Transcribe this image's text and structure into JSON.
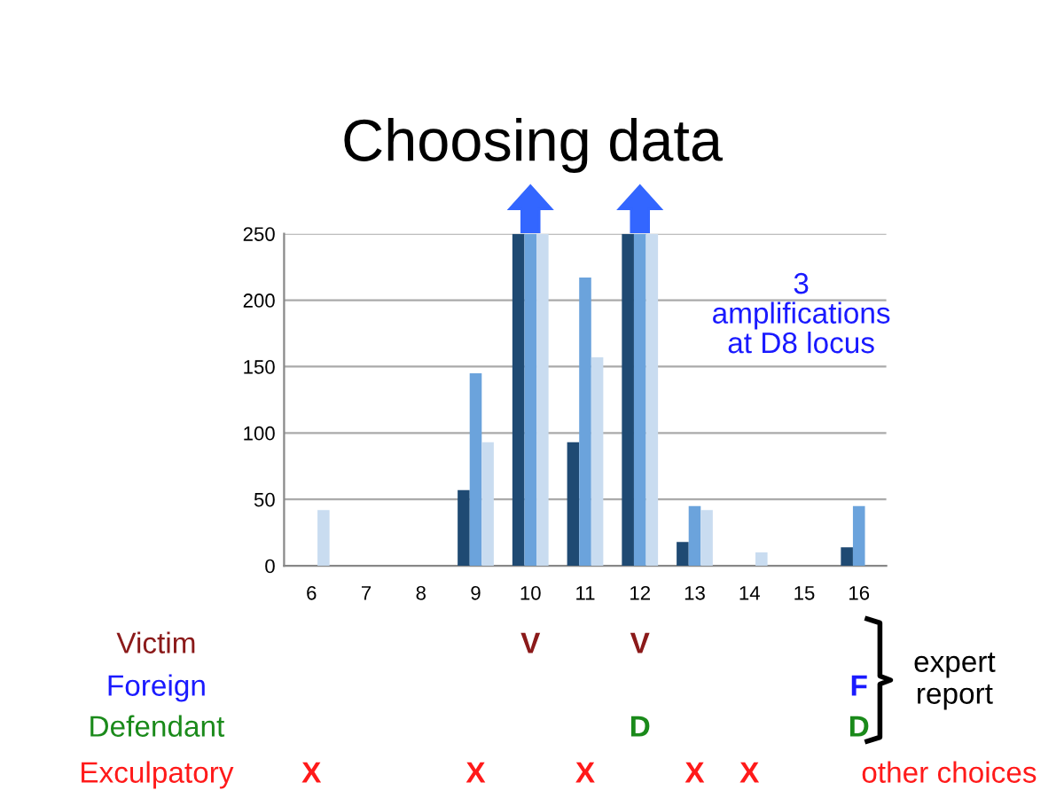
{
  "chart_data": {
    "type": "bar",
    "title": "Choosing data",
    "categories": [
      "6",
      "7",
      "8",
      "9",
      "10",
      "11",
      "12",
      "13",
      "14",
      "15",
      "16"
    ],
    "series": [
      {
        "color": "#1f4a73",
        "values": [
          null,
          null,
          null,
          57,
          250,
          93,
          250,
          18,
          null,
          null,
          14
        ]
      },
      {
        "color": "#6ba3dc",
        "values": [
          null,
          null,
          null,
          145,
          250,
          217,
          250,
          45,
          null,
          null,
          45
        ]
      },
      {
        "color": "#c9dcf0",
        "values": [
          42,
          null,
          null,
          93,
          250,
          157,
          250,
          42,
          10,
          null,
          null
        ]
      }
    ],
    "ylim": [
      0,
      250
    ],
    "yticks": [
      0,
      50,
      100,
      150,
      200,
      250
    ],
    "grid": "y",
    "legend": false,
    "annotations": [
      "3\namplifications\nat D8 locus",
      "Victim",
      "V",
      "V",
      "Foreign",
      "F",
      "Defendant",
      "D",
      "D",
      "Exculpatory",
      "X",
      "X",
      "X",
      "X",
      "X",
      "expert\nreport",
      "other choices"
    ]
  }
}
